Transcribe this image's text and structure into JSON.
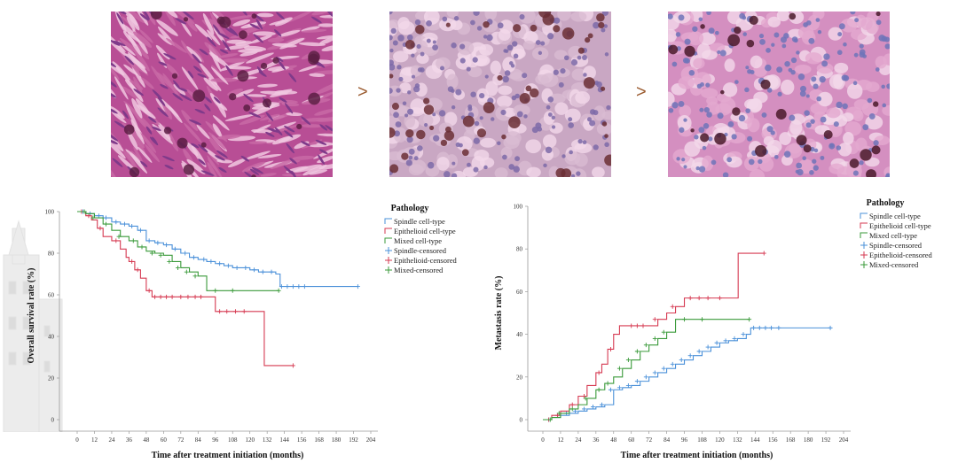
{
  "images": {
    "panels": [
      {
        "name": "spindle-histology-image",
        "palette": {
          "bg": "#b84e95",
          "cell": "#c86aa6",
          "dark": "#5c1e44",
          "nuc": "#7f3a8a"
        }
      },
      {
        "name": "mixed-histology-image",
        "palette": {
          "bg": "#c9a7c3",
          "cell": "#d9bcd2",
          "dark": "#6b2f35",
          "nuc": "#7d6aa8"
        }
      },
      {
        "name": "epithelioid-histology-image",
        "palette": {
          "bg": "#d48fc0",
          "cell": "#e3a9cf",
          "dark": "#4a1a2a",
          "nuc": "#6e74b8"
        }
      }
    ],
    "separators": [
      ">",
      ">"
    ]
  },
  "chart_data": [
    {
      "type": "line",
      "title": "",
      "xlabel": "Time after treatment initiation (months)",
      "ylabel": "Overall survival rate (%)",
      "xlim": [
        0,
        204
      ],
      "ylim": [
        0,
        100
      ],
      "xticks": [
        0,
        12,
        24,
        36,
        48,
        60,
        72,
        84,
        96,
        108,
        120,
        132,
        144,
        156,
        168,
        180,
        192,
        204
      ],
      "yticks": [
        0,
        20,
        40,
        60,
        80,
        100
      ],
      "legend_title": "Pathology",
      "legend": [
        "Spindle cell-type",
        "Epithelioid cell-type",
        "Mixed cell-type",
        "Spindle-censored",
        "Epithelioid-censored",
        "Mixed-censored"
      ],
      "series": [
        {
          "name": "Spindle cell-type",
          "color": "#4a90d9",
          "x": [
            0,
            6,
            12,
            18,
            24,
            30,
            36,
            42,
            48,
            54,
            60,
            66,
            72,
            78,
            84,
            90,
            96,
            102,
            108,
            114,
            120,
            126,
            132,
            138,
            141,
            195
          ],
          "y": [
            100,
            99,
            98,
            97,
            95,
            94,
            93,
            91,
            86,
            85,
            84,
            82,
            80,
            78,
            77,
            76,
            75,
            74,
            73,
            73,
            72,
            71,
            71,
            70,
            64,
            64
          ],
          "censored_x": [
            4,
            9,
            15,
            20,
            27,
            33,
            38,
            44,
            50,
            56,
            62,
            68,
            75,
            81,
            88,
            93,
            99,
            105,
            111,
            117,
            123,
            129,
            135,
            142,
            146,
            150,
            154,
            158,
            195
          ],
          "censored_y": [
            100,
            99,
            98,
            97,
            95,
            94,
            93,
            91,
            86,
            85,
            84,
            82,
            80,
            78,
            77,
            76,
            75,
            74,
            73,
            73,
            72,
            71,
            71,
            64,
            64,
            64,
            64,
            64,
            64
          ]
        },
        {
          "name": "Epithelioid cell-type",
          "color": "#d63a52",
          "x": [
            0,
            6,
            10,
            14,
            18,
            24,
            30,
            34,
            36,
            40,
            44,
            48,
            52,
            90,
            96,
            120,
            130,
            150
          ],
          "y": [
            100,
            98,
            96,
            92,
            88,
            86,
            82,
            78,
            76,
            72,
            68,
            62,
            59,
            59,
            52,
            52,
            26,
            26
          ],
          "censored_x": [
            3,
            8,
            16,
            27,
            38,
            42,
            50,
            54,
            58,
            62,
            66,
            72,
            77,
            82,
            86,
            99,
            104,
            110,
            116,
            150
          ],
          "censored_y": [
            100,
            98,
            92,
            86,
            76,
            72,
            62,
            59,
            59,
            59,
            59,
            59,
            59,
            59,
            59,
            52,
            52,
            52,
            52,
            26
          ]
        },
        {
          "name": "Mixed cell-type",
          "color": "#3a9a3a",
          "x": [
            0,
            6,
            12,
            18,
            24,
            30,
            36,
            42,
            48,
            54,
            60,
            66,
            72,
            78,
            84,
            90,
            140
          ],
          "y": [
            100,
            99,
            97,
            94,
            91,
            88,
            86,
            83,
            81,
            80,
            79,
            76,
            73,
            71,
            69,
            62,
            62
          ],
          "censored_x": [
            5,
            11,
            20,
            29,
            39,
            45,
            52,
            58,
            64,
            70,
            76,
            82,
            96,
            108,
            140
          ],
          "censored_y": [
            100,
            97,
            94,
            88,
            86,
            83,
            80,
            79,
            76,
            73,
            71,
            69,
            62,
            62,
            62
          ]
        }
      ]
    },
    {
      "type": "line",
      "title": "",
      "xlabel": "Time after treatment initiation (months)",
      "ylabel": "Metastasis rate (%)",
      "xlim": [
        0,
        204
      ],
      "ylim": [
        0,
        100
      ],
      "xticks": [
        0,
        12,
        24,
        36,
        48,
        60,
        72,
        84,
        96,
        108,
        120,
        132,
        144,
        156,
        168,
        180,
        192,
        204
      ],
      "yticks": [
        0,
        20,
        40,
        60,
        80,
        100
      ],
      "legend_title": "Pathology",
      "legend": [
        "Spindle cell-type",
        "Epithelioid  cell-type",
        "Mixed  cell-type",
        "Spindle-censored",
        "Epithelioid-censored",
        "Mixed-censored"
      ],
      "series": [
        {
          "name": "Spindle cell-type",
          "color": "#4a90d9",
          "x": [
            0,
            6,
            12,
            18,
            24,
            30,
            36,
            42,
            48,
            54,
            60,
            66,
            72,
            78,
            84,
            90,
            96,
            102,
            108,
            114,
            120,
            126,
            132,
            138,
            141,
            195
          ],
          "y": [
            0,
            1,
            2,
            3,
            4,
            5,
            6,
            7,
            14,
            15,
            16,
            18,
            20,
            22,
            24,
            26,
            28,
            30,
            32,
            34,
            36,
            37,
            38,
            40,
            43,
            43
          ],
          "censored_x": [
            4,
            10,
            16,
            22,
            28,
            34,
            40,
            46,
            52,
            58,
            64,
            70,
            76,
            82,
            88,
            94,
            100,
            106,
            112,
            118,
            124,
            130,
            136,
            143,
            147,
            151,
            155,
            160,
            195
          ],
          "censored_y": [
            0,
            2,
            3,
            4,
            5,
            6,
            7,
            14,
            15,
            16,
            18,
            20,
            22,
            24,
            26,
            28,
            30,
            32,
            34,
            36,
            37,
            38,
            40,
            43,
            43,
            43,
            43,
            43,
            43
          ]
        },
        {
          "name": "Epithelioid cell-type",
          "color": "#d63a52",
          "x": [
            0,
            6,
            12,
            18,
            24,
            30,
            36,
            40,
            44,
            48,
            52,
            56,
            72,
            78,
            84,
            90,
            96,
            132,
            132.5,
            150
          ],
          "y": [
            0,
            2,
            4,
            7,
            11,
            16,
            22,
            26,
            33,
            40,
            44,
            44,
            44,
            47,
            50,
            53,
            57,
            57,
            78,
            78
          ],
          "censored_x": [
            4,
            10,
            20,
            28,
            38,
            46,
            60,
            64,
            68,
            76,
            88,
            100,
            106,
            112,
            120,
            150
          ],
          "censored_y": [
            0,
            2,
            7,
            11,
            22,
            33,
            44,
            44,
            44,
            47,
            53,
            57,
            57,
            57,
            57,
            78
          ]
        },
        {
          "name": "Mixed cell-type",
          "color": "#3a9a3a",
          "x": [
            0,
            6,
            12,
            18,
            24,
            30,
            36,
            42,
            48,
            54,
            60,
            66,
            72,
            78,
            84,
            90,
            140
          ],
          "y": [
            0,
            1,
            3,
            5,
            7,
            10,
            14,
            17,
            20,
            24,
            28,
            32,
            35,
            38,
            41,
            47,
            47
          ],
          "censored_x": [
            5,
            11,
            20,
            29,
            38,
            44,
            52,
            58,
            64,
            70,
            76,
            82,
            96,
            108,
            140
          ],
          "censored_y": [
            0,
            3,
            5,
            10,
            14,
            17,
            24,
            28,
            32,
            35,
            38,
            41,
            47,
            47,
            47
          ]
        }
      ]
    }
  ]
}
